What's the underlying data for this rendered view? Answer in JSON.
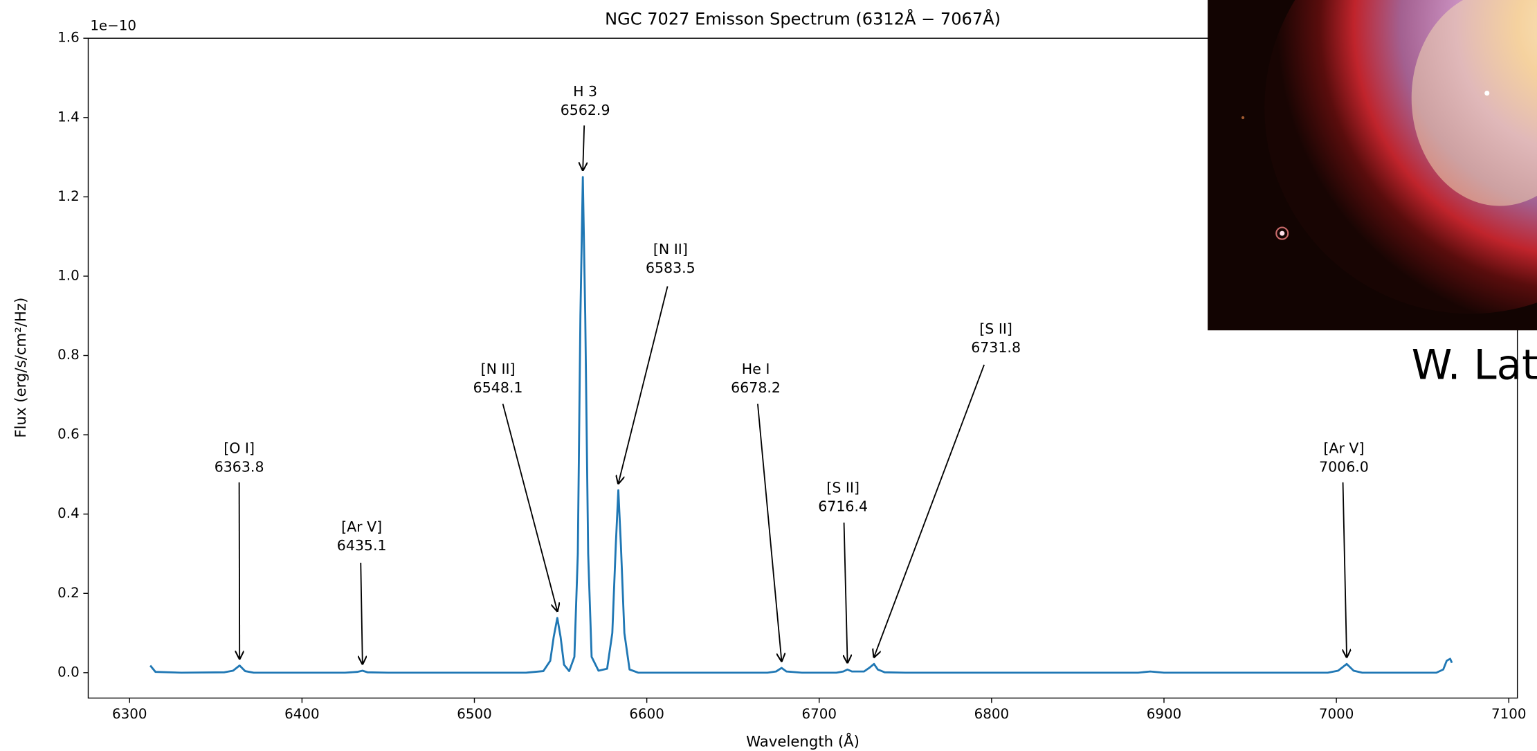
{
  "chart_data": {
    "type": "line",
    "title": "NGC 7027 Emisson Spectrum (6312Å − 7067Å)",
    "x_label": "Wavelength (Å)",
    "y_label": "Flux (erg/s/cm²/Hz)",
    "y_offset_label": "1e−10",
    "credit": "W. Lat",
    "color": "#1f77b4",
    "xlim": [
      6276,
      7105
    ],
    "ylim": [
      -0.064,
      1.6
    ],
    "xticks": [
      6300,
      6400,
      6500,
      6600,
      6700,
      6800,
      6900,
      7000,
      7100
    ],
    "yticks": [
      {
        "value": 0,
        "label": "0.0"
      },
      0.2,
      0.4,
      0.6,
      0.8,
      {
        "value": 1,
        "label": "1.0"
      },
      1.2,
      1.4,
      1.6
    ],
    "x": [
      6312,
      6315,
      6330,
      6355,
      6360,
      6363.8,
      6367,
      6372,
      6425,
      6432,
      6435.1,
      6438,
      6450,
      6530,
      6540,
      6544,
      6546,
      6548.1,
      6550,
      6552,
      6555,
      6558,
      6560,
      6561.5,
      6562.9,
      6564.3,
      6566,
      6568,
      6572,
      6577,
      6580,
      6582,
      6583.5,
      6585,
      6587,
      6590,
      6595,
      6670,
      6675,
      6678.2,
      6681,
      6690,
      6710,
      6714,
      6716.4,
      6719,
      6726,
      6729,
      6731.8,
      6734,
      6738,
      6750,
      6885,
      6892,
      6900,
      6995,
      7001,
      7006,
      7010,
      7015,
      7058,
      7062,
      7064,
      7066,
      7067
    ],
    "values": [
      0.018,
      0.002,
      0,
      0.001,
      0.005,
      0.018,
      0.004,
      0,
      0,
      0.002,
      0.005,
      0.001,
      0,
      0,
      0.004,
      0.03,
      0.09,
      0.138,
      0.09,
      0.02,
      0.004,
      0.04,
      0.3,
      0.9,
      1.25,
      0.9,
      0.3,
      0.04,
      0.005,
      0.01,
      0.1,
      0.32,
      0.46,
      0.32,
      0.1,
      0.008,
      0,
      0,
      0.003,
      0.012,
      0.003,
      0,
      0,
      0.003,
      0.008,
      0.003,
      0.003,
      0.012,
      0.022,
      0.008,
      0.001,
      0,
      0,
      0.003,
      0,
      0,
      0.005,
      0.022,
      0.005,
      0,
      0,
      0.008,
      0.03,
      0.035,
      0.025
    ],
    "annotations": [
      {
        "name": "[O I]",
        "x": 6363.8,
        "x_label": "6363.8",
        "y": 0.018
      },
      {
        "name": "[Ar V]",
        "x": 6435.1,
        "x_label": "6435.1",
        "y": 0.005
      },
      {
        "name": "[N II]",
        "x": 6548.1,
        "x_label": "6548.1",
        "y": 0.138
      },
      {
        "name": "H 3",
        "x": 6562.9,
        "x_label": "6562.9",
        "y": 1.25
      },
      {
        "name": "[N II]",
        "x": 6583.5,
        "x_label": "6583.5",
        "y": 0.46
      },
      {
        "name": "He I",
        "x": 6678.2,
        "x_label": "6678.2",
        "y": 0.012
      },
      {
        "name": "[S II]",
        "x": 6716.4,
        "x_label": "6716.4",
        "y": 0.008
      },
      {
        "name": "[S II]",
        "x": 6731.8,
        "x_label": "6731.8",
        "y": 0.022
      },
      {
        "name": "[Ar V]",
        "x": 7006,
        "x_label": "7006.0",
        "y": 0.022
      }
    ]
  }
}
